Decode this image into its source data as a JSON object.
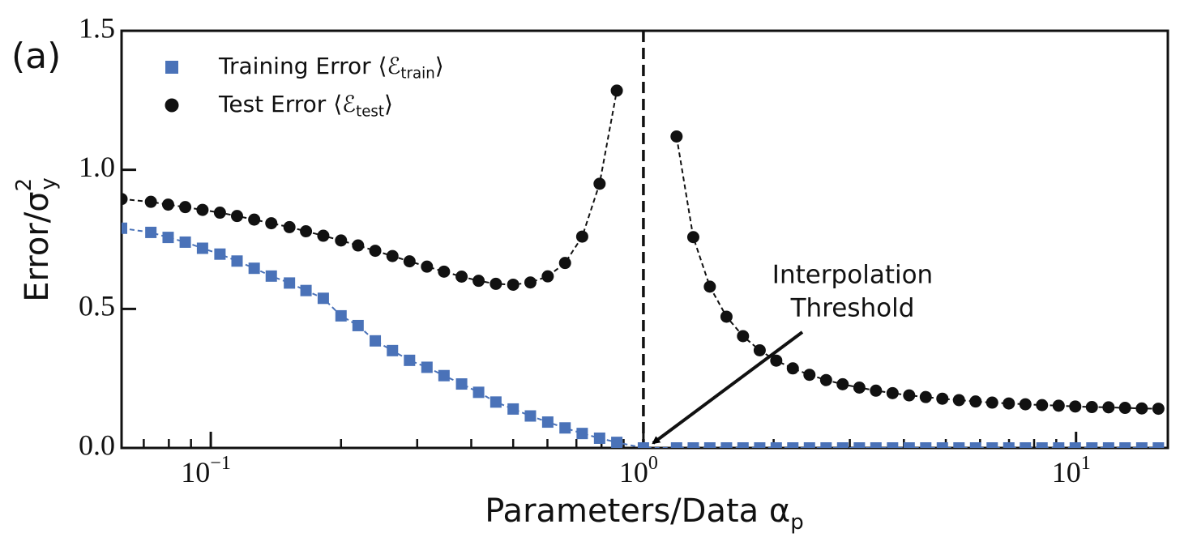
{
  "chart_data": {
    "type": "scatter",
    "panel_label": "(a)",
    "xlabel": [
      {
        "text": "Parameters/Data α"
      },
      {
        "text": "p",
        "sub": true
      }
    ],
    "ylabel": [
      {
        "text": "Error/σ"
      },
      {
        "text": "2",
        "sup": true
      },
      {
        "text": "y",
        "sub": true
      }
    ],
    "xscale": "log",
    "xlim": [
      0.0622,
      16.3
    ],
    "ylim": [
      0,
      1.5
    ],
    "xticks": [
      {
        "value": 0.1,
        "label": "10",
        "exp": "−1"
      },
      {
        "value": 1,
        "label": "10",
        "exp": "0"
      },
      {
        "value": 10,
        "label": "10",
        "exp": "1"
      }
    ],
    "xminorticks": [
      0.07,
      0.08,
      0.09,
      0.2,
      0.3,
      0.4,
      0.5,
      0.6,
      0.7,
      0.8,
      0.9,
      2,
      3,
      4,
      5,
      6,
      7,
      8,
      9
    ],
    "yticks": [
      {
        "value": 0,
        "label": "0.0"
      },
      {
        "value": 0.5,
        "label": "0.5"
      },
      {
        "value": 1,
        "label": "1.0"
      },
      {
        "value": 1.5,
        "label": "1.5"
      }
    ],
    "vline": 1,
    "legend": "upper left",
    "annotation": {
      "text": [
        "Interpolation",
        "Threshold"
      ]
    },
    "x": [
      0.0622,
      0.0727,
      0.0797,
      0.0873,
      0.0957,
      0.105,
      0.115,
      0.126,
      0.138,
      0.152,
      0.166,
      0.182,
      0.2,
      0.219,
      0.24,
      0.263,
      0.288,
      0.316,
      0.346,
      0.38,
      0.416,
      0.456,
      0.5,
      0.548,
      0.601,
      0.659,
      0.722,
      0.792,
      0.868,
      1,
      1.193,
      1.304,
      1.424,
      1.556,
      1.699,
      1.857,
      2.028,
      2.215,
      2.42,
      2.644,
      2.888,
      3.156,
      3.447,
      3.766,
      4.114,
      4.494,
      4.909,
      5.363,
      5.859,
      6.4,
      6.992,
      7.638,
      8.344,
      9.117,
      9.959,
      10.88,
      11.89,
      12.98,
      14.19,
      15.5
    ],
    "series": [
      {
        "name": [
          {
            "text": "Training Error ⟨ℰ"
          },
          {
            "text": "train",
            "sub": true
          },
          {
            "text": "⟩"
          }
        ],
        "color": "#4a72b8",
        "marker": "square",
        "values": [
          0.79,
          0.775,
          0.757,
          0.74,
          0.718,
          0.697,
          0.672,
          0.646,
          0.618,
          0.593,
          0.566,
          0.538,
          0.475,
          0.44,
          0.385,
          0.35,
          0.315,
          0.29,
          0.26,
          0.23,
          0.2,
          0.165,
          0.14,
          0.115,
          0.093,
          0.072,
          0.052,
          0.035,
          0.02,
          0,
          0,
          0,
          0,
          0,
          0,
          0,
          0,
          0,
          0,
          0,
          0,
          0,
          0,
          0,
          0,
          0,
          0,
          0,
          0,
          0,
          0,
          0,
          0,
          0,
          0,
          0,
          0,
          0,
          0,
          0
        ]
      },
      {
        "name": [
          {
            "text": "Test Error ⟨ℰ"
          },
          {
            "text": "test",
            "sub": true
          },
          {
            "text": "⟩"
          }
        ],
        "color": "#111111",
        "marker": "circle",
        "values": [
          0.895,
          0.885,
          0.875,
          0.866,
          0.856,
          0.846,
          0.834,
          0.821,
          0.808,
          0.794,
          0.779,
          0.763,
          0.746,
          0.728,
          0.709,
          0.69,
          0.671,
          0.652,
          0.634,
          0.616,
          0.601,
          0.59,
          0.587,
          0.595,
          0.617,
          0.665,
          0.76,
          0.95,
          1.285,
          null,
          1.12,
          0.758,
          0.58,
          0.472,
          0.402,
          0.351,
          0.314,
          0.286,
          0.263,
          0.244,
          0.229,
          0.217,
          0.206,
          0.197,
          0.189,
          0.183,
          0.177,
          0.172,
          0.167,
          0.163,
          0.16,
          0.157,
          0.154,
          0.152,
          0.149,
          0.147,
          0.146,
          0.144,
          0.142,
          0.141
        ]
      }
    ]
  }
}
